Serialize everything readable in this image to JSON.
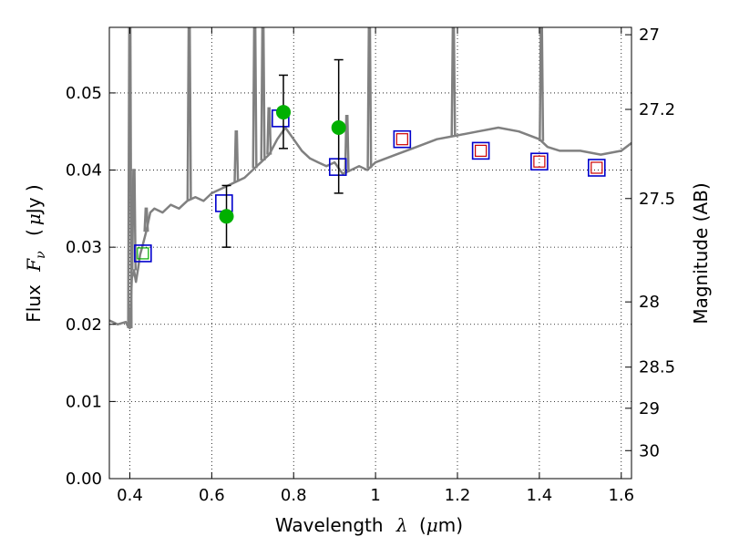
{
  "chart_data": {
    "type": "scatter",
    "title": "",
    "xlabel_text": "Wavelength",
    "xlabel_lambda": "λ",
    "xlabel_unit_open": "(",
    "xlabel_unit_mu": "μ",
    "xlabel_unit_rest": "m)",
    "ylabel_text": "Flux",
    "ylabel_sym": "F",
    "ylabel_sub": "ν",
    "ylabel_unit_open": "(",
    "ylabel_unit_mu": "μ",
    "ylabel_unit_rest": "Jy )",
    "y2label": "Magnitude (AB)",
    "xlim": [
      0.35,
      1.625
    ],
    "ylim": [
      0.0,
      0.0585
    ],
    "grid": true,
    "x_ticks": [
      {
        "v": 0.4,
        "label": "0.4"
      },
      {
        "v": 0.6,
        "label": "0.6"
      },
      {
        "v": 0.8,
        "label": "0.8"
      },
      {
        "v": 1.0,
        "label": "1"
      },
      {
        "v": 1.2,
        "label": "1.2"
      },
      {
        "v": 1.4,
        "label": "1.4"
      },
      {
        "v": 1.6,
        "label": "1.6"
      }
    ],
    "y_ticks": [
      {
        "v": 0.0,
        "label": "0.00"
      },
      {
        "v": 0.01,
        "label": "0.01"
      },
      {
        "v": 0.02,
        "label": "0.02"
      },
      {
        "v": 0.03,
        "label": "0.03"
      },
      {
        "v": 0.04,
        "label": "0.04"
      },
      {
        "v": 0.05,
        "label": "0.05"
      }
    ],
    "y2_ticks": [
      {
        "mag": 27,
        "label": "27"
      },
      {
        "mag": 27.2,
        "label": "27.2"
      },
      {
        "mag": 27.5,
        "label": "27.5"
      },
      {
        "mag": 28,
        "label": "28"
      },
      {
        "mag": 28.5,
        "label": "28.5"
      },
      {
        "mag": 29,
        "label": "29"
      },
      {
        "mag": 30,
        "label": "30"
      }
    ],
    "model_spectrum": {
      "color": "#808080",
      "x": [
        0.35,
        0.37,
        0.39,
        0.395,
        0.4,
        0.405,
        0.41,
        0.415,
        0.42,
        0.425,
        0.43,
        0.435,
        0.44,
        0.45,
        0.46,
        0.48,
        0.5,
        0.52,
        0.54,
        0.56,
        0.58,
        0.6,
        0.62,
        0.64,
        0.66,
        0.68,
        0.7,
        0.72,
        0.74,
        0.76,
        0.78,
        0.8,
        0.82,
        0.84,
        0.86,
        0.88,
        0.9,
        0.92,
        0.94,
        0.96,
        0.98,
        1.0,
        1.05,
        1.1,
        1.15,
        1.2,
        1.25,
        1.3,
        1.35,
        1.4,
        1.42,
        1.45,
        1.5,
        1.55,
        1.6,
        1.625
      ],
      "y": [
        0.0205,
        0.02,
        0.0203,
        0.0198,
        0.0195,
        0.026,
        0.027,
        0.0255,
        0.0272,
        0.029,
        0.03,
        0.031,
        0.032,
        0.0345,
        0.035,
        0.0345,
        0.0355,
        0.035,
        0.036,
        0.0365,
        0.036,
        0.037,
        0.0375,
        0.038,
        0.0385,
        0.039,
        0.04,
        0.041,
        0.042,
        0.044,
        0.0455,
        0.044,
        0.0425,
        0.0415,
        0.041,
        0.0405,
        0.041,
        0.0395,
        0.04,
        0.0405,
        0.04,
        0.041,
        0.042,
        0.043,
        0.044,
        0.0445,
        0.045,
        0.0455,
        0.045,
        0.044,
        0.043,
        0.0425,
        0.0425,
        0.042,
        0.0425,
        0.0435
      ]
    },
    "emission_lines": [
      {
        "x": 0.4,
        "peak": 0.0585
      },
      {
        "x": 0.41,
        "peak": 0.04
      },
      {
        "x": 0.44,
        "peak": 0.035
      },
      {
        "x": 0.545,
        "peak": 0.0585
      },
      {
        "x": 0.66,
        "peak": 0.045
      },
      {
        "x": 0.705,
        "peak": 0.0585
      },
      {
        "x": 0.725,
        "peak": 0.0585
      },
      {
        "x": 0.74,
        "peak": 0.048
      },
      {
        "x": 0.93,
        "peak": 0.047
      },
      {
        "x": 0.985,
        "peak": 0.0585
      },
      {
        "x": 1.19,
        "peak": 0.0585
      },
      {
        "x": 1.405,
        "peak": 0.0585
      }
    ],
    "series": [
      {
        "marker": "square",
        "color": "#0000cc",
        "points": [
          {
            "x": 0.432,
            "y": 0.0292
          },
          {
            "x": 0.63,
            "y": 0.0357
          },
          {
            "x": 0.768,
            "y": 0.0467
          },
          {
            "x": 0.908,
            "y": 0.0404
          },
          {
            "x": 1.065,
            "y": 0.044
          },
          {
            "x": 1.257,
            "y": 0.0425
          },
          {
            "x": 1.4,
            "y": 0.0411
          },
          {
            "x": 1.54,
            "y": 0.0403
          }
        ]
      },
      {
        "marker": "square-small",
        "color": "#cc0000",
        "points": [
          {
            "x": 1.065,
            "y": 0.044
          },
          {
            "x": 1.257,
            "y": 0.0425
          },
          {
            "x": 1.4,
            "y": 0.0411
          },
          {
            "x": 1.54,
            "y": 0.0403
          }
        ]
      },
      {
        "marker": "square-small",
        "color": "#00aa00",
        "points": [
          {
            "x": 0.432,
            "y": 0.0292
          }
        ]
      },
      {
        "marker": "circle",
        "color": "#00b000",
        "points": [
          {
            "x": 0.636,
            "y": 0.034,
            "err": [
              0.03,
              0.038
            ]
          },
          {
            "x": 0.775,
            "y": 0.0475,
            "err": [
              0.0428,
              0.0523
            ]
          },
          {
            "x": 0.91,
            "y": 0.0455,
            "err": [
              0.037,
              0.0543
            ]
          }
        ]
      }
    ]
  }
}
